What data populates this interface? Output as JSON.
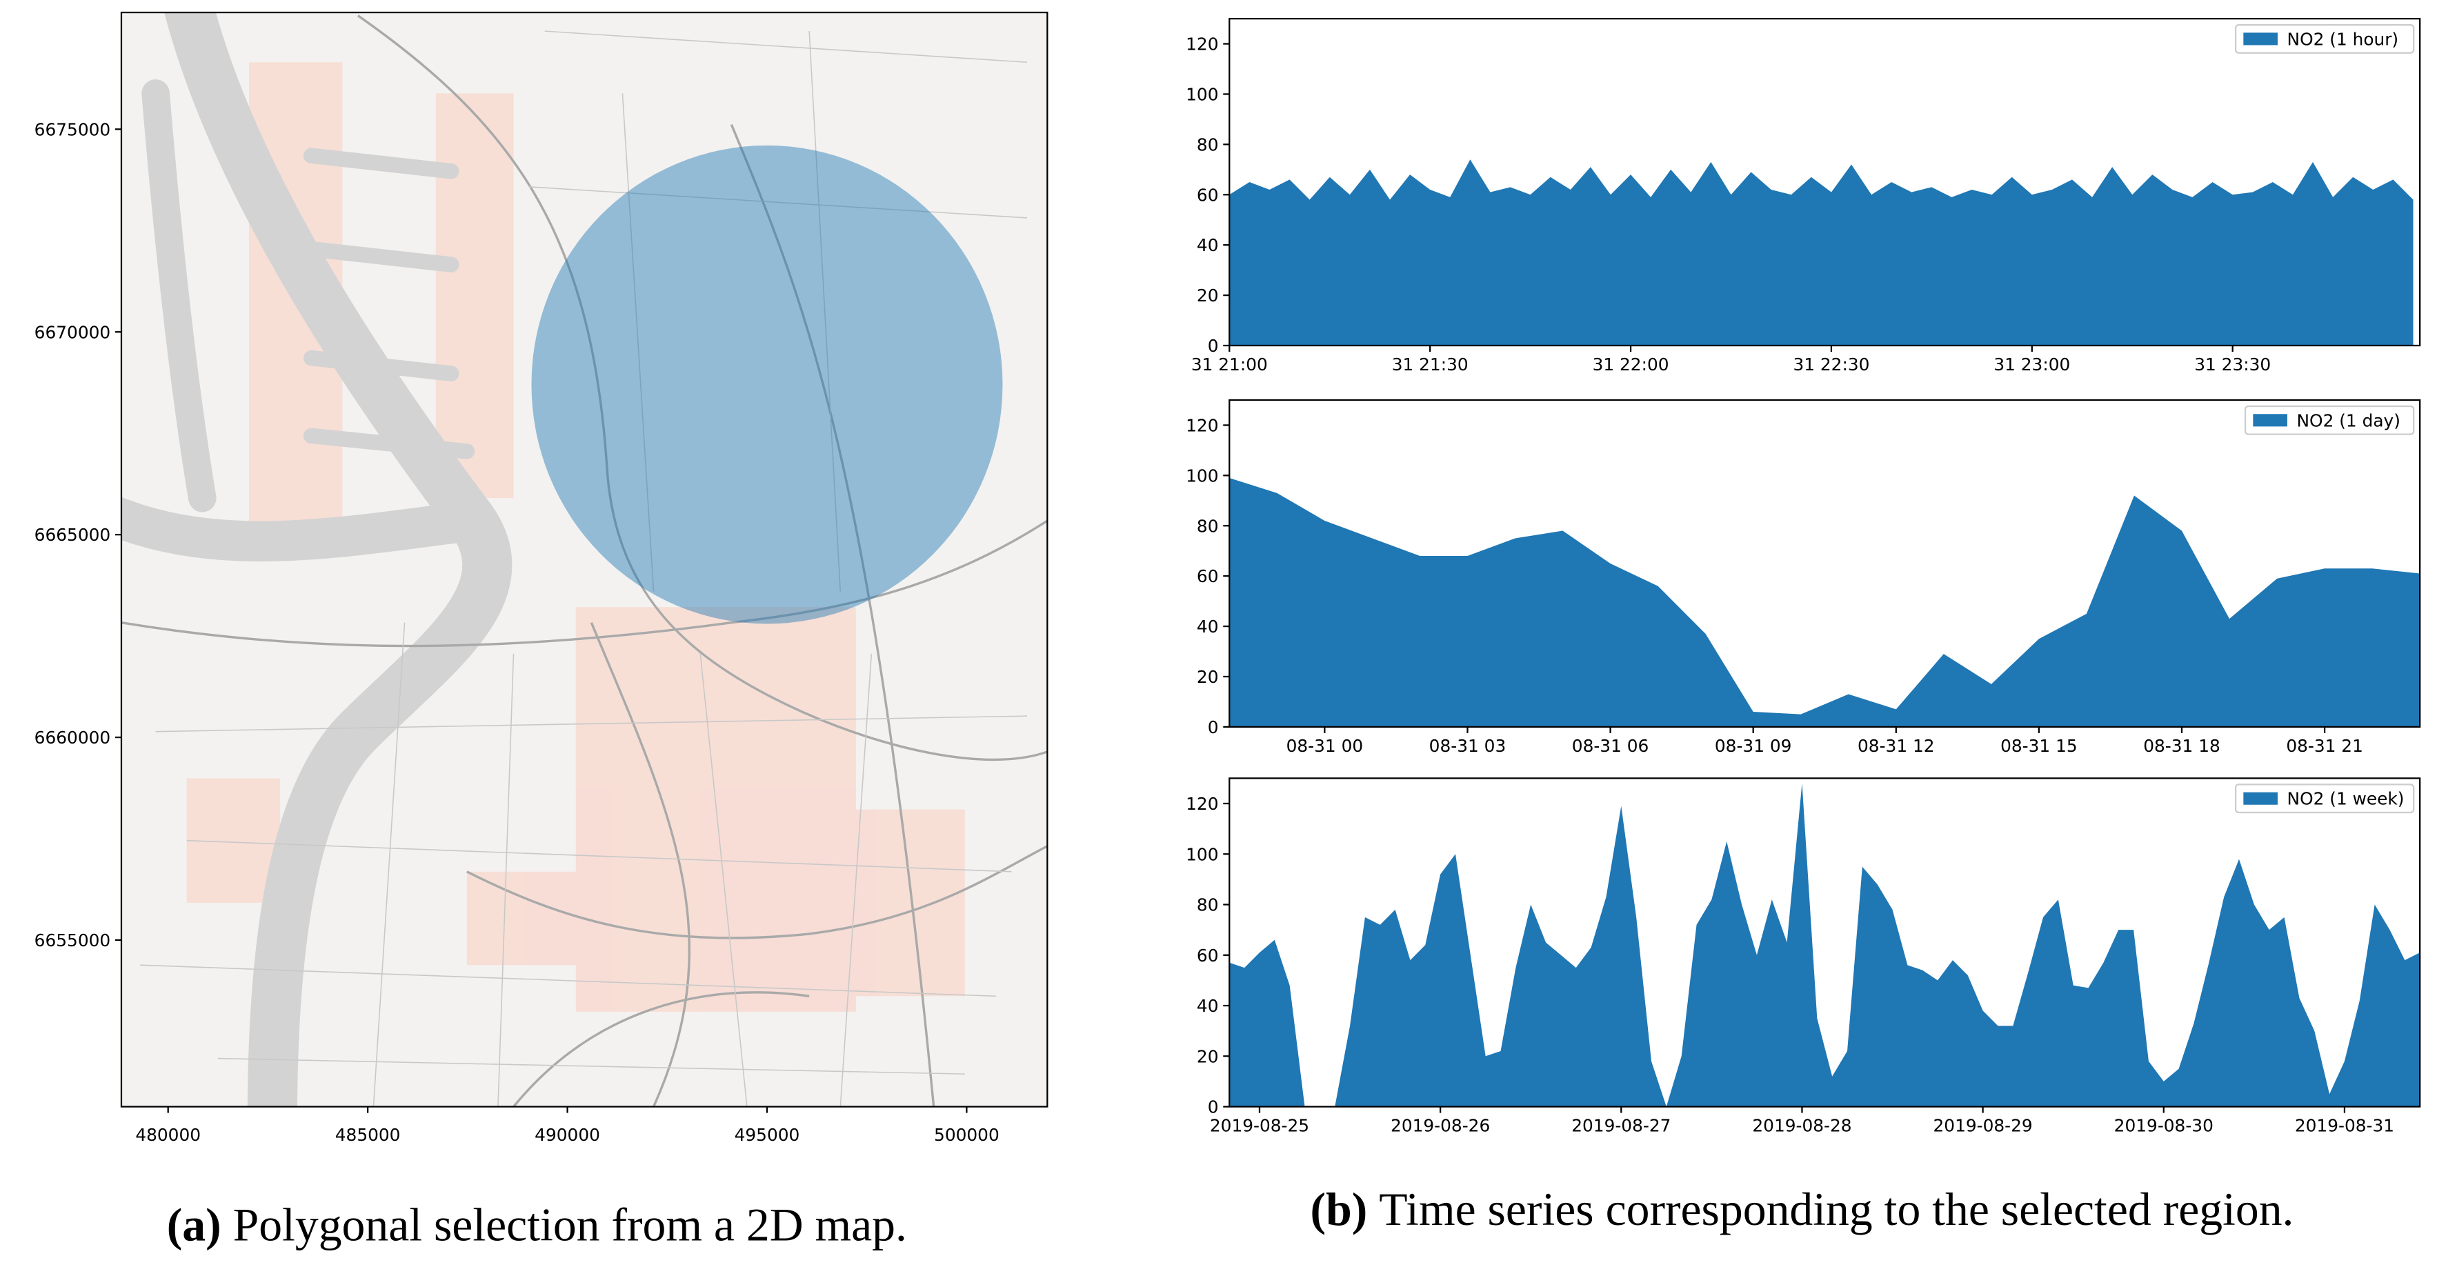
{
  "chart_data": [
    {
      "type": "map",
      "xlim": [
        478830,
        502020
      ],
      "xticks": [
        480000,
        485000,
        490000,
        495000,
        500000
      ],
      "ylim": [
        6650890,
        6677880
      ],
      "yticks": [
        6655000,
        6660000,
        6665000,
        6670000,
        6675000
      ],
      "selection": {
        "center": [
          495000,
          6668700
        ],
        "radius": 5900,
        "color": "#1f77b4"
      }
    },
    {
      "type": "area",
      "legend": "upper right",
      "xlim": [
        "31 21:00",
        "31 23:58"
      ],
      "xticks": [
        "31 21:00",
        "31 21:30",
        "31 22:00",
        "31 22:30",
        "31 23:00",
        "31 23:30"
      ],
      "ylim": [
        0,
        130
      ],
      "yticks": [
        0,
        20,
        40,
        60,
        80,
        100,
        120
      ],
      "x": [
        "31 21:00",
        "31 21:03",
        "31 21:06",
        "31 21:09",
        "31 21:12",
        "31 21:15",
        "31 21:18",
        "31 21:21",
        "31 21:24",
        "31 21:27",
        "31 21:30",
        "31 21:33",
        "31 21:36",
        "31 21:39",
        "31 21:42",
        "31 21:45",
        "31 21:48",
        "31 21:51",
        "31 21:54",
        "31 21:57",
        "31 22:00",
        "31 22:03",
        "31 22:06",
        "31 22:09",
        "31 22:12",
        "31 22:15",
        "31 22:18",
        "31 22:21",
        "31 22:24",
        "31 22:27",
        "31 22:30",
        "31 22:33",
        "31 22:36",
        "31 22:39",
        "31 22:42",
        "31 22:45",
        "31 22:48",
        "31 22:51",
        "31 22:54",
        "31 22:57",
        "31 23:00",
        "31 23:03",
        "31 23:06",
        "31 23:09",
        "31 23:12",
        "31 23:15",
        "31 23:18",
        "31 23:21",
        "31 23:24",
        "31 23:27",
        "31 23:30",
        "31 23:33",
        "31 23:36",
        "31 23:39",
        "31 23:42",
        "31 23:45",
        "31 23:48",
        "31 23:51",
        "31 23:54",
        "31 23:57"
      ],
      "series": [
        {
          "name": "NO2 (1 hour)",
          "color": "#1f77b4",
          "values": [
            60,
            65,
            62,
            66,
            58,
            67,
            60,
            70,
            58,
            68,
            62,
            59,
            74,
            61,
            63,
            60,
            67,
            62,
            71,
            60,
            68,
            59,
            70,
            61,
            73,
            60,
            69,
            62,
            60,
            67,
            61,
            72,
            60,
            65,
            61,
            63,
            59,
            62,
            60,
            67,
            60,
            62,
            66,
            59,
            71,
            60,
            68,
            62,
            59,
            65,
            60,
            61,
            65,
            60,
            73,
            59,
            67,
            62,
            66,
            58
          ]
        }
      ]
    },
    {
      "type": "area",
      "legend": "upper right",
      "xlim": [
        "08-30 22",
        "08-31 23"
      ],
      "xticks": [
        "08-31 00",
        "08-31 03",
        "08-31 06",
        "08-31 09",
        "08-31 12",
        "08-31 15",
        "08-31 18",
        "08-31 21"
      ],
      "ylim": [
        0,
        130
      ],
      "yticks": [
        0,
        20,
        40,
        60,
        80,
        100,
        120
      ],
      "x": [
        "08-30 22",
        "08-30 23",
        "08-31 00",
        "08-31 01",
        "08-31 02",
        "08-31 03",
        "08-31 04",
        "08-31 05",
        "08-31 06",
        "08-31 07",
        "08-31 08",
        "08-31 09",
        "08-31 10",
        "08-31 11",
        "08-31 12",
        "08-31 13",
        "08-31 14",
        "08-31 15",
        "08-31 16",
        "08-31 17",
        "08-31 18",
        "08-31 19",
        "08-31 20",
        "08-31 21",
        "08-31 22",
        "08-31 23"
      ],
      "series": [
        {
          "name": "NO2 (1 day)",
          "color": "#1f77b4",
          "values": [
            99,
            93,
            82,
            75,
            68,
            68,
            75,
            78,
            65,
            56,
            37,
            6,
            5,
            13,
            7,
            29,
            17,
            35,
            45,
            92,
            78,
            43,
            59,
            63,
            63,
            61
          ]
        }
      ]
    },
    {
      "type": "area",
      "legend": "upper right",
      "xlim": [
        "2019-08-24T20:00",
        "2019-08-31T10:00"
      ],
      "xticks": [
        "2019-08-25",
        "2019-08-26",
        "2019-08-27",
        "2019-08-28",
        "2019-08-29",
        "2019-08-30",
        "2019-08-31"
      ],
      "ylim": [
        0,
        130
      ],
      "yticks": [
        0,
        20,
        40,
        60,
        80,
        100,
        120
      ],
      "x": [
        "2019-08-24T20:00",
        "2019-08-24T22:00",
        "2019-08-25T00:00",
        "2019-08-25T02:00",
        "2019-08-25T04:00",
        "2019-08-25T06:00",
        "2019-08-25T08:00",
        "2019-08-25T10:00",
        "2019-08-25T12:00",
        "2019-08-25T14:00",
        "2019-08-25T16:00",
        "2019-08-25T18:00",
        "2019-08-25T20:00",
        "2019-08-25T22:00",
        "2019-08-26T00:00",
        "2019-08-26T02:00",
        "2019-08-26T04:00",
        "2019-08-26T06:00",
        "2019-08-26T08:00",
        "2019-08-26T10:00",
        "2019-08-26T12:00",
        "2019-08-26T14:00",
        "2019-08-26T16:00",
        "2019-08-26T18:00",
        "2019-08-26T20:00",
        "2019-08-26T22:00",
        "2019-08-27T00:00",
        "2019-08-27T02:00",
        "2019-08-27T04:00",
        "2019-08-27T06:00",
        "2019-08-27T08:00",
        "2019-08-27T10:00",
        "2019-08-27T12:00",
        "2019-08-27T14:00",
        "2019-08-27T16:00",
        "2019-08-27T18:00",
        "2019-08-27T20:00",
        "2019-08-27T22:00",
        "2019-08-28T00:00",
        "2019-08-28T02:00",
        "2019-08-28T04:00",
        "2019-08-28T06:00",
        "2019-08-28T08:00",
        "2019-08-28T10:00",
        "2019-08-28T12:00",
        "2019-08-28T14:00",
        "2019-08-28T16:00",
        "2019-08-28T18:00",
        "2019-08-28T20:00",
        "2019-08-28T22:00",
        "2019-08-29T00:00",
        "2019-08-29T02:00",
        "2019-08-29T04:00",
        "2019-08-29T06:00",
        "2019-08-29T08:00",
        "2019-08-29T10:00",
        "2019-08-29T12:00",
        "2019-08-29T14:00",
        "2019-08-29T16:00",
        "2019-08-29T18:00",
        "2019-08-29T20:00",
        "2019-08-29T22:00",
        "2019-08-30T00:00",
        "2019-08-30T02:00",
        "2019-08-30T04:00",
        "2019-08-30T06:00",
        "2019-08-30T08:00",
        "2019-08-30T10:00",
        "2019-08-30T12:00",
        "2019-08-30T14:00",
        "2019-08-30T16:00",
        "2019-08-30T18:00",
        "2019-08-30T20:00",
        "2019-08-30T22:00",
        "2019-08-31T00:00",
        "2019-08-31T02:00",
        "2019-08-31T04:00",
        "2019-08-31T06:00",
        "2019-08-31T08:00",
        "2019-08-31T10:00"
      ],
      "series": [
        {
          "name": "NO2 (1 week)",
          "color": "#1f77b4",
          "values": [
            57,
            55,
            61,
            66,
            48,
            0,
            0,
            0,
            32,
            75,
            72,
            78,
            58,
            64,
            92,
            100,
            60,
            20,
            22,
            55,
            80,
            65,
            60,
            55,
            63,
            83,
            119,
            75,
            18,
            0,
            20,
            72,
            82,
            105,
            80,
            60,
            82,
            65,
            128,
            35,
            12,
            22,
            95,
            88,
            78,
            56,
            54,
            50,
            58,
            52,
            38,
            32,
            32,
            53,
            75,
            82,
            48,
            47,
            57,
            70,
            70,
            18,
            10,
            15,
            33,
            57,
            83,
            98,
            80,
            70,
            75,
            43,
            30,
            5,
            18,
            42,
            80,
            70,
            58,
            61
          ]
        }
      ]
    }
  ],
  "captions": [
    {
      "label": "(a)",
      "text": "Polygonal selection from a 2D map."
    },
    {
      "label": "(b)",
      "text": "Time series corresponding to the selected region."
    }
  ]
}
